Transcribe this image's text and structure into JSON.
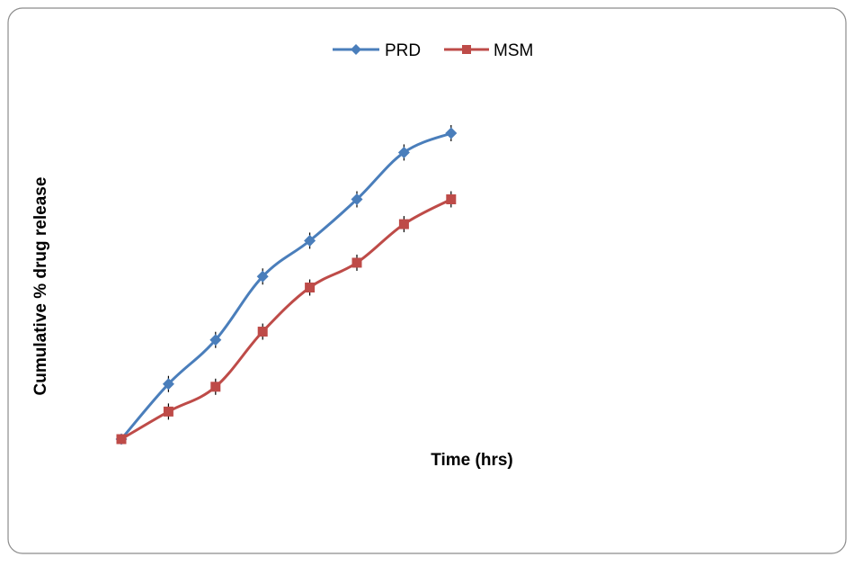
{
  "chart_data": {
    "type": "line",
    "title": "",
    "xlabel": "Time (hrs)",
    "ylabel": "Cumulative % drug release",
    "x": [
      0,
      1,
      2,
      3,
      4,
      5,
      6,
      7
    ],
    "series": [
      {
        "name": "PRD",
        "color": "#4a7ebb",
        "marker": "diamond",
        "values": [
          0,
          20,
          36,
          59,
          72,
          87,
          104,
          111
        ]
      },
      {
        "name": "MSM",
        "color": "#be4b48",
        "marker": "square",
        "values": [
          0,
          10,
          19,
          39,
          55,
          64,
          78,
          87
        ]
      }
    ],
    "ylim": [
      0,
      115
    ],
    "grid": false,
    "legend_position": "top-center"
  }
}
